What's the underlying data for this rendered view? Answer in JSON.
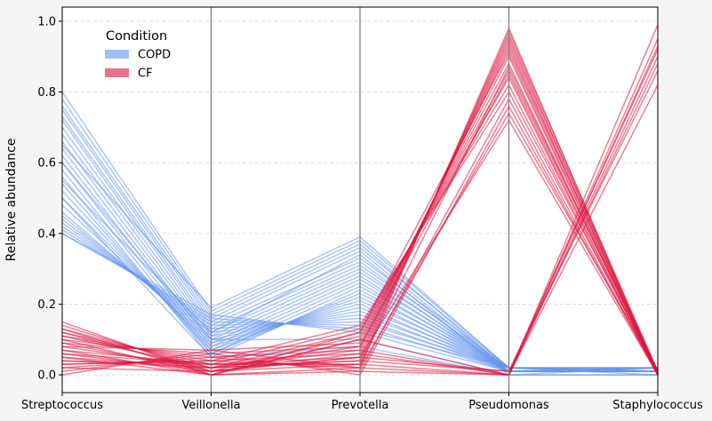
{
  "chart_data": {
    "type": "parallel-coordinates",
    "ylabel": "Relative abundance",
    "ylim": [
      -0.05,
      1.04
    ],
    "yticks": [
      0.0,
      0.2,
      0.4,
      0.6,
      0.8,
      1.0
    ],
    "ytick_labels": [
      "0.0",
      "0.2",
      "0.4",
      "0.6",
      "0.8",
      "1.0"
    ],
    "grid": "horizontal-dashed",
    "axes": [
      "Streptococcus",
      "Veillonella",
      "Prevotella",
      "Pseudomonas",
      "Staphylococcus"
    ],
    "legend": {
      "title": "Condition",
      "placement": "top-left",
      "entries": [
        {
          "label": "COPD",
          "color": "#6495ed"
        },
        {
          "label": "CF",
          "color": "#dc143c"
        }
      ]
    },
    "series": [
      {
        "name": "COPD",
        "color": "#6495ed",
        "lines": [
          [
            0.8,
            0.18,
            0.38,
            0.02,
            0.01
          ],
          [
            0.78,
            0.17,
            0.37,
            0.01,
            0.02
          ],
          [
            0.76,
            0.16,
            0.36,
            0.02,
            0.01
          ],
          [
            0.75,
            0.15,
            0.35,
            0.01,
            0.01
          ],
          [
            0.73,
            0.14,
            0.33,
            0.02,
            0.02
          ],
          [
            0.72,
            0.13,
            0.32,
            0.01,
            0.01
          ],
          [
            0.7,
            0.12,
            0.31,
            0.02,
            0.01
          ],
          [
            0.68,
            0.11,
            0.3,
            0.01,
            0.02
          ],
          [
            0.66,
            0.1,
            0.29,
            0.02,
            0.01
          ],
          [
            0.64,
            0.09,
            0.28,
            0.01,
            0.01
          ],
          [
            0.62,
            0.08,
            0.27,
            0.02,
            0.02
          ],
          [
            0.6,
            0.07,
            0.26,
            0.01,
            0.01
          ],
          [
            0.58,
            0.06,
            0.25,
            0.02,
            0.01
          ],
          [
            0.56,
            0.05,
            0.24,
            0.01,
            0.02
          ],
          [
            0.54,
            0.06,
            0.23,
            0.02,
            0.01
          ],
          [
            0.52,
            0.07,
            0.22,
            0.01,
            0.01
          ],
          [
            0.5,
            0.08,
            0.21,
            0.02,
            0.02
          ],
          [
            0.48,
            0.09,
            0.2,
            0.01,
            0.01
          ],
          [
            0.46,
            0.1,
            0.19,
            0.02,
            0.01
          ],
          [
            0.45,
            0.11,
            0.18,
            0.01,
            0.02
          ],
          [
            0.44,
            0.12,
            0.17,
            0.02,
            0.01
          ],
          [
            0.43,
            0.13,
            0.16,
            0.01,
            0.01
          ],
          [
            0.42,
            0.14,
            0.15,
            0.02,
            0.02
          ],
          [
            0.41,
            0.15,
            0.14,
            0.01,
            0.01
          ],
          [
            0.4,
            0.16,
            0.13,
            0.02,
            0.01
          ],
          [
            0.4,
            0.17,
            0.12,
            0.01,
            0.02
          ],
          [
            0.6,
            0.1,
            0.1,
            0.0,
            0.0
          ],
          [
            0.55,
            0.12,
            0.34,
            0.0,
            0.0
          ],
          [
            0.65,
            0.19,
            0.39,
            0.02,
            0.0
          ],
          [
            0.5,
            0.05,
            0.08,
            0.0,
            0.02
          ]
        ]
      },
      {
        "name": "CF",
        "color": "#dc143c",
        "lines": [
          [
            0.15,
            0.0,
            0.02,
            0.98,
            0.0
          ],
          [
            0.14,
            0.01,
            0.03,
            0.97,
            0.01
          ],
          [
            0.13,
            0.02,
            0.04,
            0.96,
            0.0
          ],
          [
            0.12,
            0.03,
            0.05,
            0.95,
            0.01
          ],
          [
            0.11,
            0.04,
            0.06,
            0.94,
            0.0
          ],
          [
            0.1,
            0.05,
            0.07,
            0.93,
            0.0
          ],
          [
            0.09,
            0.06,
            0.08,
            0.92,
            0.01
          ],
          [
            0.08,
            0.07,
            0.09,
            0.9,
            0.0
          ],
          [
            0.07,
            0.0,
            0.1,
            0.88,
            0.0
          ],
          [
            0.06,
            0.01,
            0.11,
            0.86,
            0.01
          ],
          [
            0.05,
            0.02,
            0.12,
            0.84,
            0.0
          ],
          [
            0.04,
            0.03,
            0.13,
            0.82,
            0.0
          ],
          [
            0.03,
            0.04,
            0.14,
            0.8,
            0.01
          ],
          [
            0.02,
            0.05,
            0.01,
            0.78,
            0.0
          ],
          [
            0.01,
            0.06,
            0.0,
            0.76,
            0.0
          ],
          [
            0.0,
            0.07,
            0.02,
            0.74,
            0.01
          ],
          [
            0.12,
            0.01,
            0.05,
            0.72,
            0.0
          ],
          [
            0.08,
            0.02,
            0.08,
            0.85,
            0.0
          ],
          [
            0.1,
            0.0,
            0.12,
            0.91,
            0.0
          ],
          [
            0.06,
            0.03,
            0.03,
            0.87,
            0.01
          ],
          [
            0.13,
            0.0,
            0.1,
            0.0,
            0.99
          ],
          [
            0.11,
            0.02,
            0.07,
            0.0,
            0.95
          ],
          [
            0.09,
            0.01,
            0.05,
            0.01,
            0.92
          ],
          [
            0.07,
            0.03,
            0.03,
            0.0,
            0.9
          ],
          [
            0.05,
            0.0,
            0.01,
            0.0,
            0.88
          ],
          [
            0.04,
            0.02,
            0.04,
            0.01,
            0.86
          ],
          [
            0.03,
            0.04,
            0.02,
            0.0,
            0.82
          ],
          [
            0.02,
            0.01,
            0.06,
            0.0,
            0.93
          ]
        ]
      }
    ]
  }
}
